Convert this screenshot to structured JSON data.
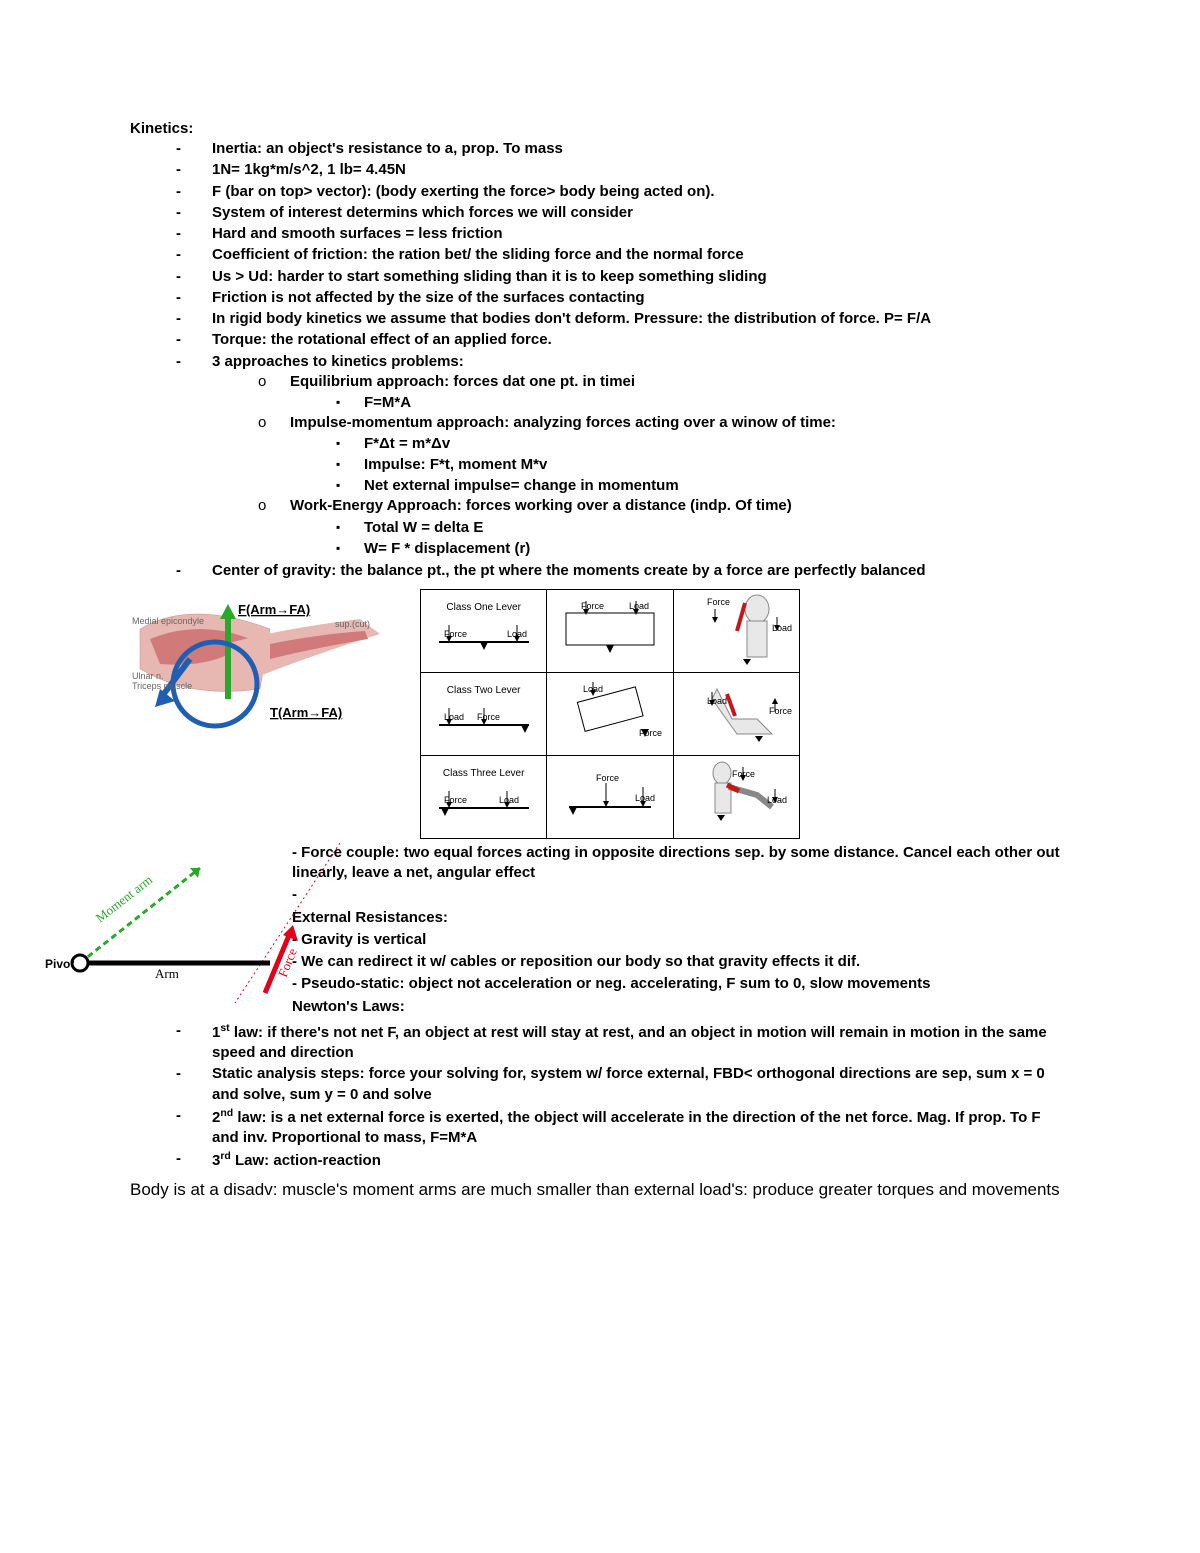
{
  "title": "Kinetics:",
  "bullets": [
    "Inertia: an object's resistance to a, prop. To mass",
    "1N= 1kg*m/s^2, 1 lb= 4.45N",
    "F (bar on top> vector): (body exerting the force> body being acted on).",
    "System of interest determins which forces we will consider",
    "Hard and smooth surfaces = less friction",
    "Coefficient of friction: the ration bet/ the sliding force and the normal force",
    "Us > Ud: harder to start something sliding than it is to keep something sliding",
    "Friction is not affected by the size of the surfaces contacting",
    "In rigid body kinetics we assume that bodies don't deform. Pressure: the distribution of force. P= F/A",
    "Torque: the rotational effect of an applied force.",
    "3 approaches to kinetics problems:"
  ],
  "approaches": [
    {
      "head": "Equilibrium approach: forces dat one pt. in timei",
      "subs": [
        "F=M*A"
      ]
    },
    {
      "head": "Impulse-momentum approach: analyzing forces acting over a winow of time:",
      "subs": [
        "F*Δt = m*Δv",
        "Impulse: F*t, moment M*v",
        "Net external impulse= change in momentum"
      ]
    },
    {
      "head": "Work-Energy Approach: forces working over a distance (indp. Of time)",
      "subs": [
        "Total W = delta E",
        "W= F * displacement (r)"
      ]
    }
  ],
  "cog": "Center of gravity: the balance pt., the pt where the moments create by a force are perfectly balanced",
  "arm_labels": {
    "f": "F(Arm→FA)",
    "t": "T(Arm→FA)"
  },
  "lever_rows": [
    {
      "name": "Class One Lever",
      "f": "Force",
      "l": "Load"
    },
    {
      "name": "Class Two Lever",
      "f": "Force",
      "l": "Load"
    },
    {
      "name": "Class Three Lever",
      "f": "Force",
      "l": "Load"
    }
  ],
  "lever_extra": {
    "force": "Force",
    "load": "Load"
  },
  "moment_labels": {
    "pivot": "Pivot",
    "arm": "Arm",
    "moment_arm": "Moment arm",
    "force": "Force"
  },
  "side": {
    "l1": "-  Force couple: two equal forces acting in opposite directions sep. by some distance. Cancel each other out linearly, leave a net, angular effect",
    "l2": "-",
    "head": "External Resistances:",
    "l3": "-  Gravity is vertical",
    "l4": "-  We can redirect it w/ cables or reposition our body so that gravity effects it dif.",
    "l5": "-  Pseudo-static: object not acceleration or neg. accelerating, F sum to 0, slow movements",
    "newton": "Newton's Laws:"
  },
  "laws": [
    "1<sup>st</sup> law: if there's not net F, an object at rest will stay at rest, and an object in motion will remain in motion in the same speed and direction",
    "Static analysis steps: force your solving for, system w/ force external, FBD< orthogonal directions are sep, sum x = 0 and solve, sum y = 0 and solve",
    "2<sup>nd</sup> law: is a net external force is exerted, the object will accelerate in the direction of the net force. Mag. If prop. To F and inv. Proportional to mass, F=M*A",
    "3<sup>rd</sup> Law: action-reaction"
  ],
  "footer": "Body is at a disadv: muscle's moment arms are much smaller than external load's: produce greater torques and movements",
  "colors": {
    "green": "#2aa82a",
    "blue": "#1e5fb3",
    "red": "#e2001a",
    "muscle": "#d27a7a",
    "line_dash": "#2aa82a",
    "line_dot": "#e2001a"
  }
}
